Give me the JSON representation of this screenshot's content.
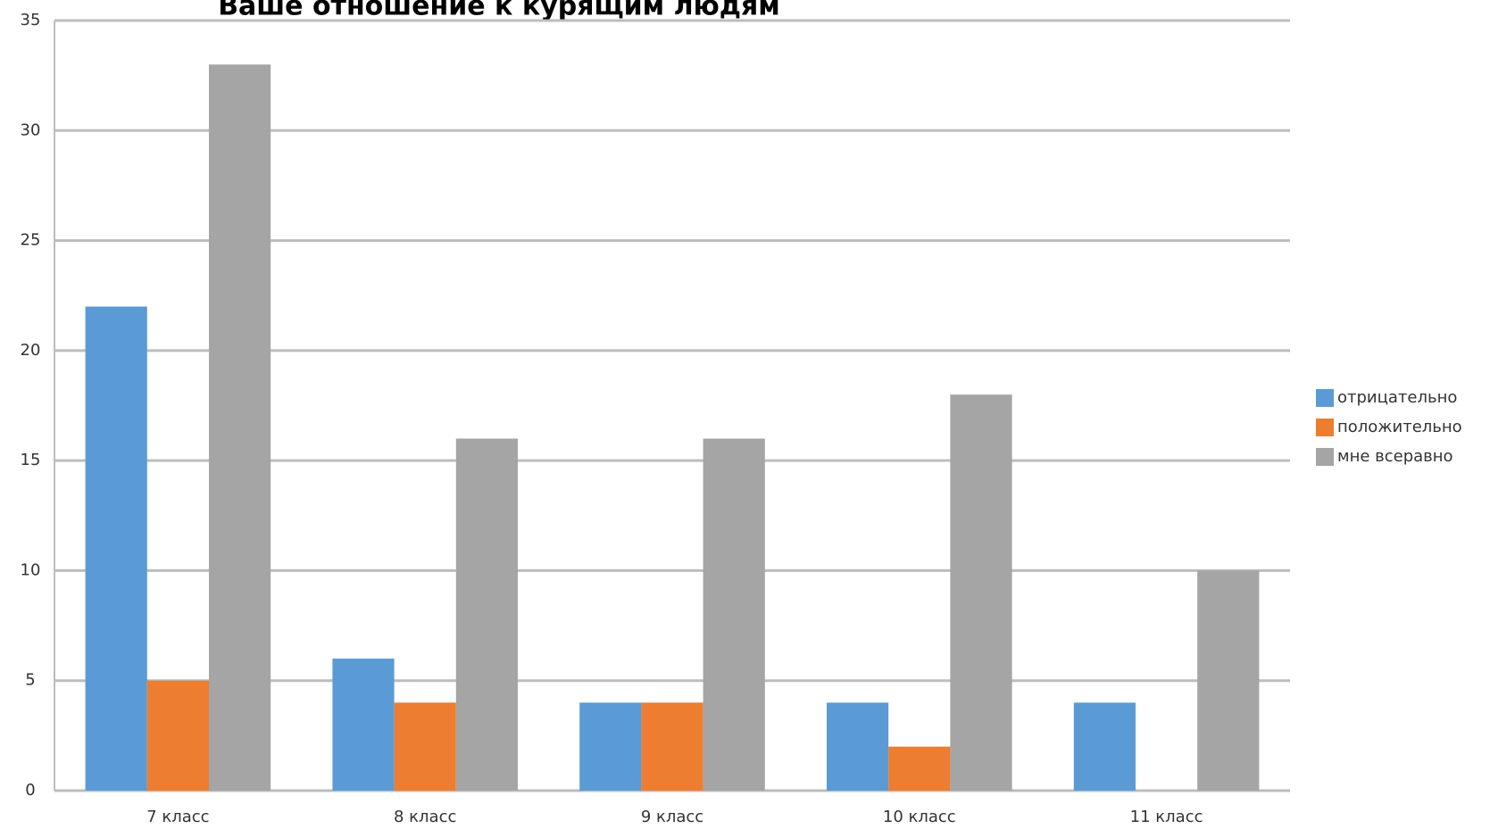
{
  "chart_data": {
    "type": "bar",
    "title": "Ваше отношение к курящим людям",
    "categories": [
      "7 класс",
      "8 класс",
      "9 класс",
      "10 класс",
      "11 класс"
    ],
    "series": [
      {
        "name": "отрицательно",
        "color": "#5b9bd5",
        "values": [
          22,
          6,
          4,
          4,
          4
        ]
      },
      {
        "name": "положительно",
        "color": "#ed7d31",
        "values": [
          5,
          4,
          4,
          2,
          0
        ]
      },
      {
        "name": "мне всеравно",
        "color": "#a5a5a5",
        "values": [
          33,
          16,
          16,
          18,
          10
        ]
      }
    ],
    "ylim": [
      0,
      35
    ],
    "yticks": [
      0,
      5,
      10,
      15,
      20,
      25,
      30,
      35
    ],
    "grid": true,
    "legend": "right"
  }
}
